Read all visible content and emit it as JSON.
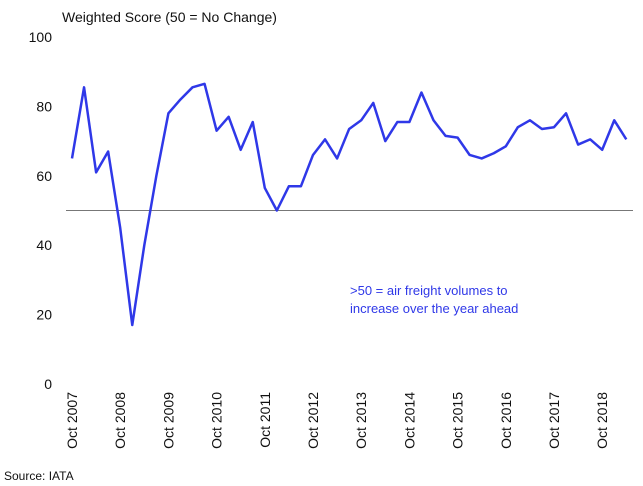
{
  "chart_data": {
    "type": "line",
    "y_axis_label": "Weighted Score  (50 = No Change)",
    "source": "Source: IATA",
    "annotation": [
      ">50 = air freight volumes to",
      "increase over the year ahead"
    ],
    "reference_line": 50,
    "categories": [
      "Oct 2007",
      null,
      null,
      null,
      "Oct 2008",
      null,
      null,
      null,
      "Oct 2009",
      null,
      null,
      null,
      "Oct 2010",
      null,
      null,
      null,
      "Oct 2011",
      null,
      null,
      null,
      "Oct 2012",
      null,
      null,
      null,
      "Oct 2013",
      null,
      null,
      null,
      "Oct 2014",
      null,
      null,
      null,
      "Oct 2015",
      null,
      null,
      null,
      "Oct 2016",
      null,
      null,
      null,
      "Oct 2017",
      null,
      null,
      null,
      "Oct 2018",
      null,
      null
    ],
    "series": [
      {
        "name": "Weighted Score",
        "color": "#2f38e8",
        "values": [
          65,
          85.5,
          61,
          67,
          45,
          17,
          40,
          60,
          78,
          82,
          85.5,
          86.5,
          73,
          77,
          67.5,
          75.5,
          56.5,
          50,
          57,
          57,
          66,
          70.5,
          65,
          73.5,
          76,
          81,
          70,
          75.5,
          75.5,
          84,
          76,
          71.5,
          71,
          66,
          65,
          66.5,
          68.5,
          74,
          76,
          73.5,
          74,
          78,
          69,
          70.5,
          67.5,
          76,
          70.5
        ]
      }
    ],
    "ylim": [
      0,
      100
    ],
    "yticks": [
      0,
      20,
      40,
      60,
      80,
      100
    ],
    "grid": false
  }
}
